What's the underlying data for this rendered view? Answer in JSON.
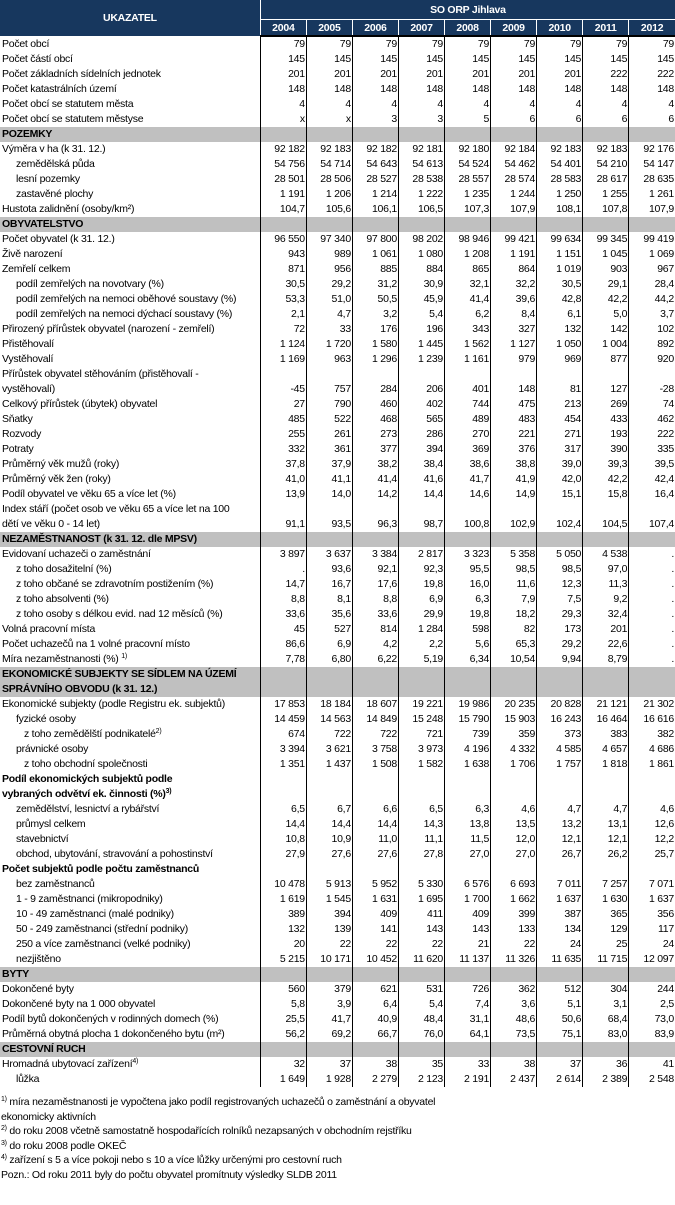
{
  "header": {
    "indicator": "UKAZATEL",
    "region": "SO ORP Jihlava",
    "years": [
      "2004",
      "2005",
      "2006",
      "2007",
      "2008",
      "2009",
      "2010",
      "2011",
      "2012"
    ]
  },
  "colors": {
    "header_bg": "#17375e",
    "section_bg": "#c0c0c0"
  },
  "rows": [
    {
      "label": "Počet obcí",
      "values": [
        "79",
        "79",
        "79",
        "79",
        "79",
        "79",
        "79",
        "79",
        "79"
      ]
    },
    {
      "label": "Počet částí obcí",
      "values": [
        "145",
        "145",
        "145",
        "145",
        "145",
        "145",
        "145",
        "145",
        "145"
      ]
    },
    {
      "label": "Počet základních sídelních jednotek",
      "values": [
        "201",
        "201",
        "201",
        "201",
        "201",
        "201",
        "201",
        "222",
        "222"
      ]
    },
    {
      "label": "Počet katastrálních území",
      "values": [
        "148",
        "148",
        "148",
        "148",
        "148",
        "148",
        "148",
        "148",
        "148"
      ]
    },
    {
      "label": "Počet obcí se statutem města",
      "values": [
        "4",
        "4",
        "4",
        "4",
        "4",
        "4",
        "4",
        "4",
        "4"
      ]
    },
    {
      "label": "Počet obcí se statutem městyse",
      "values": [
        "x",
        "x",
        "3",
        "3",
        "5",
        "6",
        "6",
        "6",
        "6"
      ]
    },
    {
      "type": "section",
      "label": "POZEMKY"
    },
    {
      "label": "Výměra v ha (k 31. 12.)",
      "values": [
        "92 182",
        "92 183",
        "92 182",
        "92 181",
        "92 180",
        "92 184",
        "92 183",
        "92 183",
        "92 176"
      ]
    },
    {
      "label": "zemědělská půda",
      "indent": 1,
      "values": [
        "54 756",
        "54 714",
        "54 643",
        "54 613",
        "54 524",
        "54 462",
        "54 401",
        "54 210",
        "54 147"
      ]
    },
    {
      "label": "lesní pozemky",
      "indent": 1,
      "values": [
        "28 501",
        "28 506",
        "28 527",
        "28 538",
        "28 557",
        "28 574",
        "28 583",
        "28 617",
        "28 635"
      ]
    },
    {
      "label": "zastavěné plochy",
      "indent": 1,
      "values": [
        "1 191",
        "1 206",
        "1 214",
        "1 222",
        "1 235",
        "1 244",
        "1 250",
        "1 255",
        "1 261"
      ]
    },
    {
      "label": "Hustota zalidnění (osoby/km²)",
      "values": [
        "104,7",
        "105,6",
        "106,1",
        "106,5",
        "107,3",
        "107,9",
        "108,1",
        "107,8",
        "107,9"
      ]
    },
    {
      "type": "section",
      "label": "OBYVATELSTVO"
    },
    {
      "label": "Počet obyvatel (k 31. 12.)",
      "values": [
        "96 550",
        "97 340",
        "97 800",
        "98 202",
        "98 946",
        "99 421",
        "99 634",
        "99 345",
        "99 419"
      ]
    },
    {
      "label": "Živě narození",
      "values": [
        "943",
        "989",
        "1 061",
        "1 080",
        "1 208",
        "1 191",
        "1 151",
        "1 045",
        "1 069"
      ]
    },
    {
      "label": "Zemřelí celkem",
      "values": [
        "871",
        "956",
        "885",
        "884",
        "865",
        "864",
        "1 019",
        "903",
        "967"
      ]
    },
    {
      "label": "podíl zemřelých na novotvary (%)",
      "indent": 1,
      "values": [
        "30,5",
        "29,2",
        "31,2",
        "30,9",
        "32,1",
        "32,2",
        "30,5",
        "29,1",
        "28,4"
      ]
    },
    {
      "label": "podíl zemřelých na nemoci oběhové soustavy (%)",
      "indent": 1,
      "values": [
        "53,3",
        "51,0",
        "50,5",
        "45,9",
        "41,4",
        "39,6",
        "42,8",
        "42,2",
        "44,2"
      ]
    },
    {
      "label": "podíl zemřelých na nemoci dýchací soustavy (%)",
      "indent": 1,
      "values": [
        "2,1",
        "4,7",
        "3,2",
        "5,4",
        "6,2",
        "8,4",
        "6,1",
        "5,0",
        "3,7"
      ]
    },
    {
      "label": "Přirozený přírůstek obyvatel (narození - zemřelí)",
      "values": [
        "72",
        "33",
        "176",
        "196",
        "343",
        "327",
        "132",
        "142",
        "102"
      ]
    },
    {
      "label": "Přistěhovalí",
      "values": [
        "1 124",
        "1 720",
        "1 580",
        "1 445",
        "1 562",
        "1 127",
        "1 050",
        "1 004",
        "892"
      ]
    },
    {
      "label": "Vystěhovalí",
      "values": [
        "1 169",
        "963",
        "1 296",
        "1 239",
        "1 161",
        "979",
        "969",
        "877",
        "920"
      ]
    },
    {
      "label": "Přírůstek obyvatel stěhováním (přistěhovalí -\nvystěhovalí)",
      "values": [
        "-45",
        "757",
        "284",
        "206",
        "401",
        "148",
        "81",
        "127",
        "-28"
      ]
    },
    {
      "label": "Celkový přírůstek (úbytek) obyvatel",
      "values": [
        "27",
        "790",
        "460",
        "402",
        "744",
        "475",
        "213",
        "269",
        "74"
      ]
    },
    {
      "label": "Sňatky",
      "values": [
        "485",
        "522",
        "468",
        "565",
        "489",
        "483",
        "454",
        "433",
        "462"
      ]
    },
    {
      "label": "Rozvody",
      "values": [
        "255",
        "261",
        "273",
        "286",
        "270",
        "221",
        "271",
        "193",
        "222"
      ]
    },
    {
      "label": "Potraty",
      "values": [
        "332",
        "361",
        "377",
        "394",
        "369",
        "376",
        "317",
        "390",
        "335"
      ]
    },
    {
      "label": "Průměrný věk mužů (roky)",
      "values": [
        "37,8",
        "37,9",
        "38,2",
        "38,4",
        "38,6",
        "38,8",
        "39,0",
        "39,3",
        "39,5"
      ]
    },
    {
      "label": "Průměrný věk žen (roky)",
      "values": [
        "41,0",
        "41,1",
        "41,4",
        "41,6",
        "41,7",
        "41,9",
        "42,0",
        "42,2",
        "42,4"
      ]
    },
    {
      "label": "Podíl obyvatel ve věku 65 a více let (%)",
      "values": [
        "13,9",
        "14,0",
        "14,2",
        "14,4",
        "14,6",
        "14,9",
        "15,1",
        "15,8",
        "16,4"
      ]
    },
    {
      "label": "Index stáří (počet osob ve věku 65 a více let na 100\ndětí ve věku 0 - 14 let)",
      "values": [
        "91,1",
        "93,5",
        "96,3",
        "98,7",
        "100,8",
        "102,9",
        "102,4",
        "104,5",
        "107,4"
      ]
    },
    {
      "type": "section",
      "label": "NEZAMĚSTNANOST (k 31. 12. dle MPSV)"
    },
    {
      "label": "Evidovaní uchazeči o zaměstnání",
      "values": [
        "3 897",
        "3 637",
        "3 384",
        "2 817",
        "3 323",
        "5 358",
        "5 050",
        "4 538",
        "."
      ]
    },
    {
      "label": "z toho dosažitelní (%)",
      "indent": 1,
      "values": [
        ".",
        "93,6",
        "92,1",
        "92,3",
        "95,5",
        "98,5",
        "98,5",
        "97,0",
        "."
      ]
    },
    {
      "label": "z toho občané se zdravotním postižením (%)",
      "indent": 1,
      "values": [
        "14,7",
        "16,7",
        "17,6",
        "19,8",
        "16,0",
        "11,6",
        "12,3",
        "11,3",
        "."
      ]
    },
    {
      "label": "z toho absolventi (%)",
      "indent": 1,
      "values": [
        "8,8",
        "8,1",
        "8,8",
        "6,9",
        "6,3",
        "7,9",
        "7,5",
        "9,2",
        "."
      ]
    },
    {
      "label": "z toho osoby s délkou evid. nad 12 měsíců (%)",
      "indent": 1,
      "values": [
        "33,6",
        "35,6",
        "33,6",
        "29,9",
        "19,8",
        "18,2",
        "29,3",
        "32,4",
        "."
      ]
    },
    {
      "label": "Volná pracovní místa",
      "values": [
        "45",
        "527",
        "814",
        "1 284",
        "598",
        "82",
        "173",
        "201",
        "."
      ]
    },
    {
      "label": "Počet uchazečů na 1 volné pracovní místo",
      "values": [
        "86,6",
        "6,9",
        "4,2",
        "2,2",
        "5,6",
        "65,3",
        "29,2",
        "22,6",
        "."
      ]
    },
    {
      "label": "Míra nezaměstnanosti (%) ",
      "sup": "1)",
      "values": [
        "7,78",
        "6,80",
        "6,22",
        "5,19",
        "6,34",
        "10,54",
        "9,94",
        "8,79",
        "."
      ]
    },
    {
      "type": "section",
      "label": "EKONOMICKÉ SUBJEKTY SE SÍDLEM NA ÚZEMÍ\nSPRÁVNÍHO OBVODU (k 31. 12.)"
    },
    {
      "label": "Ekonomické subjekty (podle Registru ek. subjektů)",
      "values": [
        "17 853",
        "18 184",
        "18 607",
        "19 221",
        "19 986",
        "20 235",
        "20 828",
        "21 121",
        "21 302"
      ]
    },
    {
      "label": "fyzické osoby",
      "indent": 1,
      "values": [
        "14 459",
        "14 563",
        "14 849",
        "15 248",
        "15 790",
        "15 903",
        "16 243",
        "16 464",
        "16 616"
      ]
    },
    {
      "label": "z toho zemědělští podnikatelé",
      "sup": "2)",
      "indent": 2,
      "values": [
        "674",
        "722",
        "722",
        "721",
        "739",
        "359",
        "373",
        "383",
        "382"
      ]
    },
    {
      "label": "právnické osoby",
      "indent": 1,
      "values": [
        "3 394",
        "3 621",
        "3 758",
        "3 973",
        "4 196",
        "4 332",
        "4 585",
        "4 657",
        "4 686"
      ]
    },
    {
      "label": "z toho obchodní společnosti",
      "indent": 2,
      "values": [
        "1 351",
        "1 437",
        "1 508",
        "1 582",
        "1 638",
        "1 706",
        "1 757",
        "1 818",
        "1 861"
      ]
    },
    {
      "type": "subheading",
      "label": "Podíl ekonomických subjektů podle\nvybraných odvětví ek. činnosti (%)",
      "sup": "3)"
    },
    {
      "label": "zemědělství, lesnictví a rybářství",
      "indent": 1,
      "values": [
        "6,5",
        "6,7",
        "6,6",
        "6,5",
        "6,3",
        "4,6",
        "4,7",
        "4,7",
        "4,6"
      ]
    },
    {
      "label": "průmysl celkem",
      "indent": 1,
      "values": [
        "14,4",
        "14,4",
        "14,4",
        "14,3",
        "13,8",
        "13,5",
        "13,2",
        "13,1",
        "12,6"
      ]
    },
    {
      "label": "stavebnictví",
      "indent": 1,
      "values": [
        "10,8",
        "10,9",
        "11,0",
        "11,1",
        "11,5",
        "12,0",
        "12,1",
        "12,1",
        "12,2"
      ]
    },
    {
      "label": "obchod, ubytování, stravování a pohostinství",
      "indent": 1,
      "values": [
        "27,9",
        "27,6",
        "27,6",
        "27,8",
        "27,0",
        "27,0",
        "26,7",
        "26,2",
        "25,7"
      ]
    },
    {
      "type": "subheading",
      "label": "Počet subjektů  podle počtu zaměstnanců"
    },
    {
      "label": "bez zaměstnanců",
      "indent": 1,
      "values": [
        "10 478",
        "5 913",
        "5 952",
        "5 330",
        "6 576",
        "6 693",
        "7 011",
        "7 257",
        "7 071"
      ]
    },
    {
      "label": "1 - 9 zaměstnanci (mikropodniky)",
      "indent": 1,
      "values": [
        "1 619",
        "1 545",
        "1 631",
        "1 695",
        "1 700",
        "1 662",
        "1 637",
        "1 630",
        "1 637"
      ]
    },
    {
      "label": "10 - 49 zaměstnanci (malé podniky)",
      "indent": 1,
      "values": [
        "389",
        "394",
        "409",
        "411",
        "409",
        "399",
        "387",
        "365",
        "356"
      ]
    },
    {
      "label": "50 - 249 zaměstnanci (střední podniky)",
      "indent": 1,
      "values": [
        "132",
        "139",
        "141",
        "143",
        "143",
        "133",
        "134",
        "129",
        "117"
      ]
    },
    {
      "label": "250 a více zaměstnanci (velké podniky)",
      "indent": 1,
      "values": [
        "20",
        "22",
        "22",
        "22",
        "21",
        "22",
        "24",
        "25",
        "24"
      ]
    },
    {
      "label": "nezjištěno",
      "indent": 1,
      "values": [
        "5 215",
        "10 171",
        "10 452",
        "11 620",
        "11 137",
        "11 326",
        "11 635",
        "11 715",
        "12 097"
      ]
    },
    {
      "type": "section",
      "label": "BYTY"
    },
    {
      "label": "Dokončené byty",
      "values": [
        "560",
        "379",
        "621",
        "531",
        "726",
        "362",
        "512",
        "304",
        "244"
      ]
    },
    {
      "label": "Dokončené byty na 1 000 obyvatel",
      "values": [
        "5,8",
        "3,9",
        "6,4",
        "5,4",
        "7,4",
        "3,6",
        "5,1",
        "3,1",
        "2,5"
      ]
    },
    {
      "label": "Podíl bytů dokončených v rodinných domech (%)",
      "values": [
        "25,5",
        "41,7",
        "40,9",
        "48,4",
        "31,1",
        "48,6",
        "50,6",
        "68,4",
        "73,0"
      ]
    },
    {
      "label": "Průměrná obytná plocha 1 dokončeného bytu (m²)",
      "values": [
        "56,2",
        "69,2",
        "66,7",
        "76,0",
        "64,1",
        "73,5",
        "75,1",
        "83,0",
        "83,9"
      ]
    },
    {
      "type": "section",
      "label": "CESTOVNÍ RUCH"
    },
    {
      "label": "Hromadná ubytovací zařízení",
      "sup": "4)",
      "values": [
        "32",
        "37",
        "38",
        "35",
        "33",
        "38",
        "37",
        "36",
        "41"
      ]
    },
    {
      "label": "lůžka",
      "indent": 1,
      "values": [
        "1 649",
        "1 928",
        "2 279",
        "2 123",
        "2 191",
        "2 437",
        "2 614",
        "2 389",
        "2 548"
      ]
    }
  ],
  "footnotes": [
    {
      "mark": "1)",
      "text": " míra nezaměstnanosti je vypočtena jako podíl registrovaných uchazečů o zaměstnání a obyvatel\nekonomicky aktivních"
    },
    {
      "mark": "2)",
      "text": " do roku 2008 včetně samostatně hospodařících rolníků nezapsaných v obchodním rejstříku"
    },
    {
      "mark": "3)",
      "text": " do roku 2008 podle OKEČ"
    },
    {
      "mark": "4)",
      "text": " zařízení s 5 a více pokoji nebo s 10 a více lůžky určenými pro cestovní ruch"
    },
    {
      "mark": "",
      "text": "Pozn.: Od roku 2011 byly do počtu obyvatel promítnuty výsledky SLDB 2011"
    }
  ]
}
